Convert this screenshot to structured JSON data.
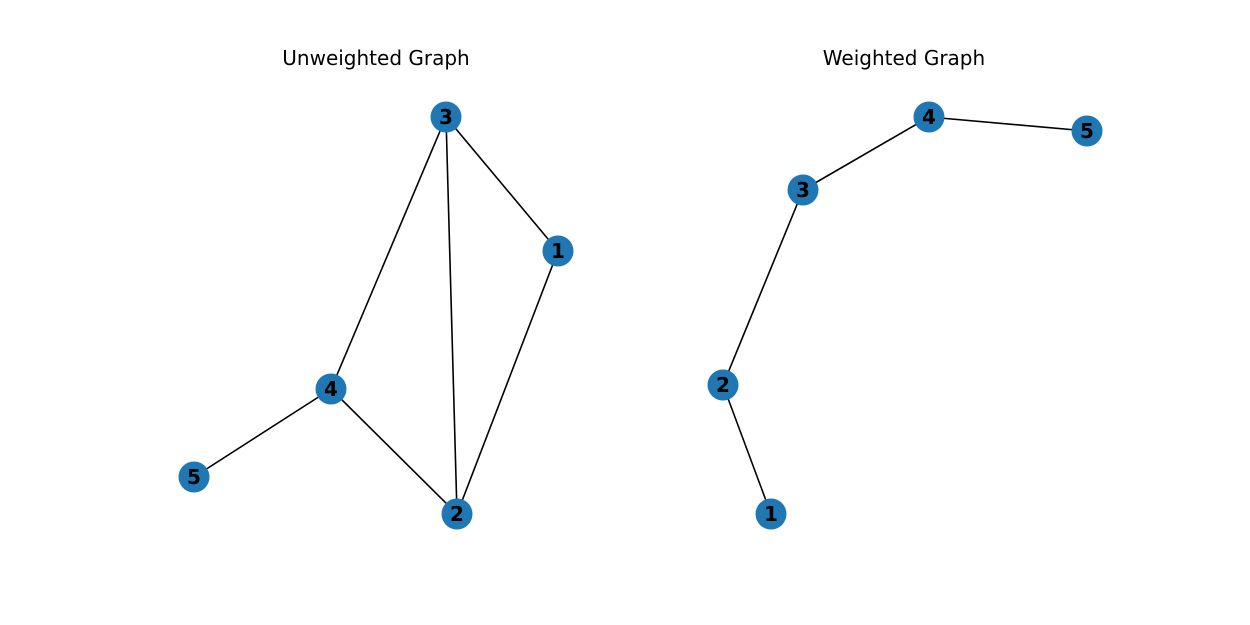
{
  "colors": {
    "node_fill": "#1f77b4",
    "edge": "#000000",
    "background": "#ffffff"
  },
  "graphs": [
    {
      "title": "Unweighted Graph",
      "nodes": [
        "1",
        "2",
        "3",
        "4",
        "5"
      ],
      "edges": [
        [
          "3",
          "1"
        ],
        [
          "3",
          "2"
        ],
        [
          "3",
          "4"
        ],
        [
          "1",
          "2"
        ],
        [
          "4",
          "2"
        ],
        [
          "4",
          "5"
        ]
      ]
    },
    {
      "title": "Weighted Graph",
      "nodes": [
        "1",
        "2",
        "3",
        "4",
        "5"
      ],
      "edges": [
        [
          "4",
          "5"
        ],
        [
          "4",
          "3"
        ],
        [
          "3",
          "2"
        ],
        [
          "2",
          "1"
        ]
      ]
    }
  ]
}
